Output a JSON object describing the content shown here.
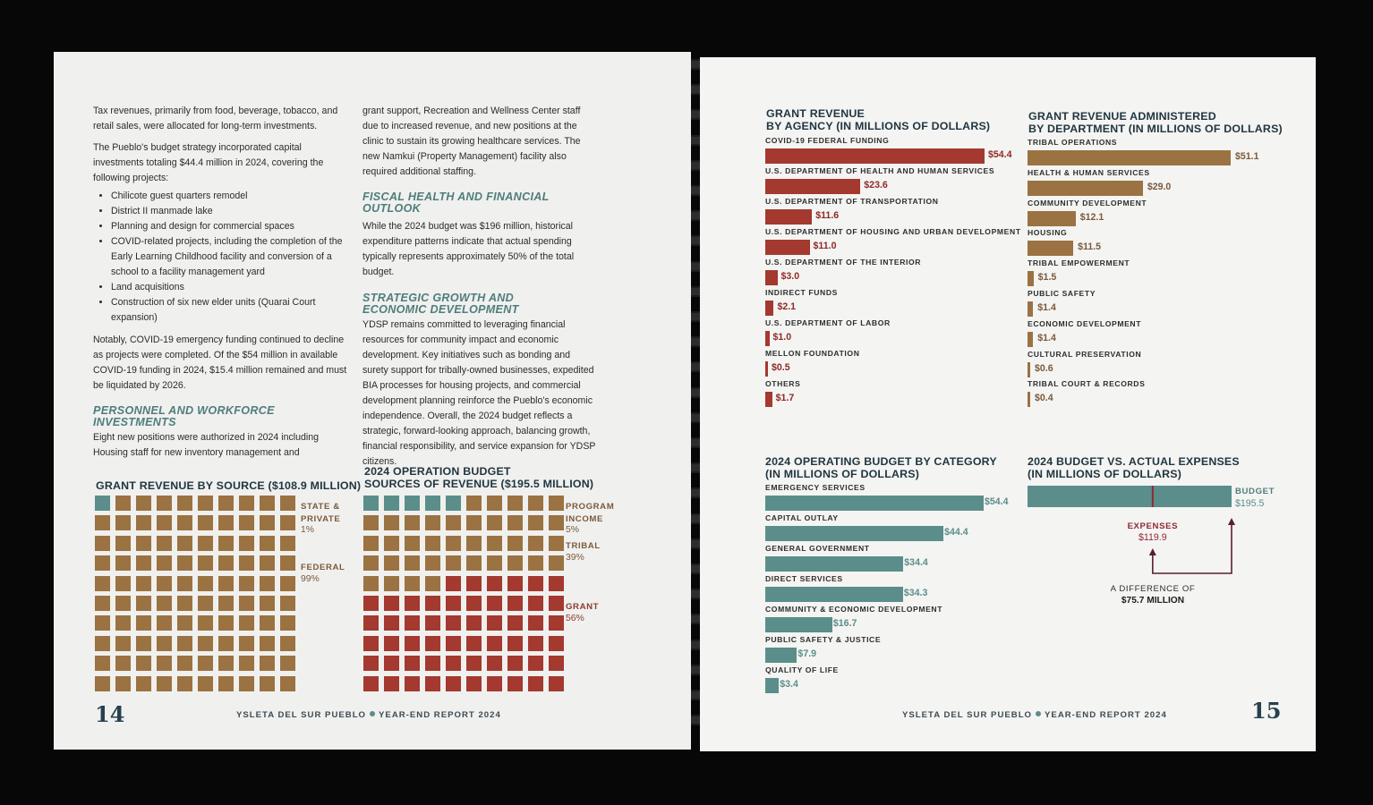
{
  "left_page": {
    "col1": {
      "p1": "Tax revenues, primarily from food, beverage, tobacco, and retail sales, were allocated for long-term investments.",
      "p2": "The Pueblo's budget strategy incorporated capital investments totaling $44.4 million in 2024, covering the following projects:",
      "bullets": [
        "Chilicote guest quarters remodel",
        "District II manmade lake",
        "Planning and design for commercial spaces",
        "COVID-related projects, including the completion of the Early Learning Childhood facility and conversion of a school to a facility management yard",
        "Land acquisitions",
        "Construction of six new elder units (Quarai Court expansion)"
      ],
      "p3": "Notably, COVID-19 emergency funding continued to decline as projects were completed. Of the $54 million in available COVID-19 funding in 2024, $15.4 million remained and must be liquidated by 2026.",
      "heading_personnel": "PERSONNEL AND WORKFORCE INVESTMENTS",
      "p4": "Eight new positions were authorized in 2024 including Housing staff for new inventory management and"
    },
    "col2": {
      "p1": "grant support, Recreation and Wellness Center staff due to increased revenue, and new positions at the clinic to sustain its growing healthcare services. The new Namkui (Property Management) facility also required additional staffing.",
      "heading_fiscal": "FISCAL HEALTH AND FINANCIAL OUTLOOK",
      "p2": "While the 2024 budget was $196 million, historical expenditure patterns indicate that actual spending typically represents approximately 50% of the total budget.",
      "heading_strategic": "STRATEGIC GROWTH AND ECONOMIC DEVELOPMENT",
      "p3": "YDSP remains committed to leveraging financial resources for community impact and economic development. Key initiatives such as bonding and surety support for tribally-owned businesses, expedited BIA processes for housing projects, and commercial development planning reinforce the Pueblo's economic independence. Overall, the 2024 budget reflects a strategic, forward-looking approach, balancing growth, financial responsibility, and service expansion for YDSP citizens."
    },
    "folio": "14",
    "footer_name": "YSLETA DEL SUR PUEBLO",
    "footer_report": "YEAR-END REPORT 2024"
  },
  "right_page": {
    "folio": "15",
    "footer_name": "YSLETA DEL SUR PUEBLO",
    "footer_report": "YEAR-END REPORT 2024"
  },
  "colors": {
    "teal": "#5b8e8a",
    "brown": "#9b7242",
    "red": "#a3392f",
    "rust": "#a14033",
    "navy": "#1f3540"
  },
  "chart_data": [
    {
      "type": "waffle",
      "title": "GRANT REVENUE BY SOURCE ($108.9 MILLION)",
      "grid": [
        10,
        10
      ],
      "series": [
        {
          "name": "STATE & PRIVATE",
          "name_lines": [
            "STATE &",
            "PRIVATE"
          ],
          "pct": "1%",
          "squares": 1,
          "color": "#5b8e8a"
        },
        {
          "name": "FEDERAL",
          "name_lines": [
            "FEDERAL"
          ],
          "pct": "99%",
          "squares": 99,
          "color": "#9b7242"
        }
      ]
    },
    {
      "type": "waffle",
      "title_lines": [
        "2024 OPERATION BUDGET",
        "SOURCES OF REVENUE ($195.5 MILLION)"
      ],
      "grid": [
        10,
        10
      ],
      "series": [
        {
          "name": "PROGRAM INCOME",
          "name_lines": [
            "PROGRAM",
            "INCOME"
          ],
          "pct": "5%",
          "squares": 5,
          "color": "#5b8e8a"
        },
        {
          "name": "TRIBAL",
          "name_lines": [
            "TRIBAL"
          ],
          "pct": "39%",
          "squares": 39,
          "color": "#9b7242"
        },
        {
          "name": "GRANT",
          "name_lines": [
            "GRANT"
          ],
          "pct": "56%",
          "squares": 56,
          "color": "#a3392f"
        }
      ]
    },
    {
      "type": "bar",
      "orientation": "horizontal",
      "title_lines": [
        "GRANT REVENUE",
        "BY AGENCY (IN MILLIONS OF DOLLARS)"
      ],
      "color": "#a3392f",
      "categories": [
        "COVID-19 FEDERAL FUNDING",
        "U.S. DEPARTMENT OF HEALTH AND HUMAN SERVICES",
        "U.S. DEPARTMENT OF TRANSPORTATION",
        "U.S. DEPARTMENT OF HOUSING AND URBAN DEVELOPMENT",
        "U.S. DEPARTMENT OF THE INTERIOR",
        "INDIRECT FUNDS",
        "U.S. DEPARTMENT OF LABOR",
        "MELLON FOUNDATION",
        "OTHERS"
      ],
      "values": [
        54.4,
        23.6,
        11.6,
        11.0,
        3.0,
        2.1,
        1.0,
        0.5,
        1.7
      ],
      "labels": [
        "$54.4",
        "$23.6",
        "$11.6",
        "$11.0",
        "$3.0",
        "$2.1",
        "$1.0",
        "$0.5",
        "$1.7"
      ]
    },
    {
      "type": "bar",
      "orientation": "horizontal",
      "title_lines": [
        "GRANT REVENUE ADMINISTERED",
        "BY DEPARTMENT (IN MILLIONS OF DOLLARS)"
      ],
      "color": "#9b7242",
      "categories": [
        "TRIBAL OPERATIONS",
        "HEALTH & HUMAN SERVICES",
        "COMMUNITY DEVELOPMENT",
        "HOUSING",
        "TRIBAL EMPOWERMENT",
        "PUBLIC SAFETY",
        "ECONOMIC DEVELOPMENT",
        "CULTURAL PRESERVATION",
        "TRIBAL COURT & RECORDS"
      ],
      "values": [
        51.1,
        29.0,
        12.1,
        11.5,
        1.5,
        1.4,
        1.4,
        0.6,
        0.4
      ],
      "labels": [
        "$51.1",
        "$29.0",
        "$12.1",
        "$11.5",
        "$1.5",
        "$1.4",
        "$1.4",
        "$0.6",
        "$0.4"
      ]
    },
    {
      "type": "bar",
      "orientation": "horizontal",
      "title_lines": [
        "2024 OPERATING BUDGET BY CATEGORY",
        "(IN MILLIONS OF DOLLARS)"
      ],
      "color": "#5b8e8a",
      "categories": [
        "EMERGENCY SERVICES",
        "CAPITAL OUTLAY",
        "GENERAL GOVERNMENT",
        "DIRECT SERVICES",
        "COMMUNITY & ECONOMIC DEVELOPMENT",
        "PUBLIC SAFETY & JUSTICE",
        "QUALITY OF LIFE"
      ],
      "values": [
        54.4,
        44.4,
        34.4,
        34.3,
        16.7,
        7.9,
        3.4
      ],
      "labels": [
        "$54.4",
        "$44.4",
        "$34.4",
        "$34.3",
        "$16.7",
        "$7.9",
        "$3.4"
      ]
    },
    {
      "type": "bar",
      "orientation": "horizontal",
      "title_lines": [
        "2024 BUDGET VS. ACTUAL EXPENSES",
        "(IN MILLIONS OF DOLLARS)"
      ],
      "budget_label": "BUDGET",
      "budget_value": 195.5,
      "budget_text": "$195.5",
      "expenses_label": "EXPENSES",
      "expenses_value": 119.9,
      "expenses_text": "$119.9",
      "difference_line1": "A DIFFERENCE OF",
      "difference_line2": "$75.7 MILLION"
    }
  ]
}
